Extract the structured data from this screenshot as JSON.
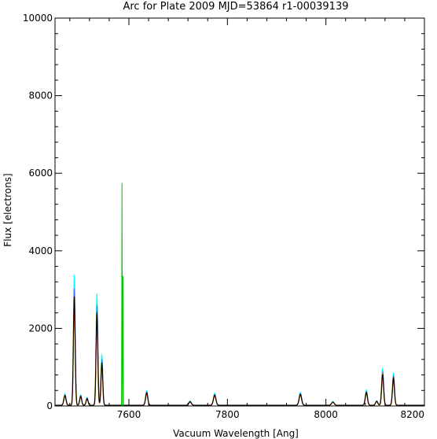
{
  "chart_data": {
    "type": "line",
    "title": "Arc for Plate 2009   MJD=53864   r1-00039139",
    "xlabel": "Vacuum Wavelength [Ang]",
    "ylabel": "Flux [electrons]",
    "xlim": [
      7450,
      8200
    ],
    "ylim": [
      0,
      10000
    ],
    "x_ticks": [
      7600,
      7800,
      8000,
      8200
    ],
    "x_tick_labels": [
      "7600",
      "7800",
      "8000",
      "8200"
    ],
    "y_ticks": [
      0,
      2000,
      4000,
      6000,
      8000,
      10000
    ],
    "y_tick_labels": [
      "0",
      "2000",
      "4000",
      "6000",
      "8000",
      "10000"
    ],
    "grid": false,
    "legend": "none",
    "colors": {
      "black": "#000000",
      "cyan": "#00ffff",
      "blue": "#3f6fff",
      "yellow": "#ffff00",
      "red": "#ff0000",
      "green": "#00c800"
    },
    "baseline": 20,
    "lines": [
      {
        "x": 7470,
        "peak": 250,
        "width": 2.2
      },
      {
        "x": 7489,
        "peak": 2800,
        "width": 1.8
      },
      {
        "x": 7502,
        "peak": 230,
        "width": 2.0
      },
      {
        "x": 7515,
        "peak": 170,
        "width": 2.0
      },
      {
        "x": 7535,
        "peak": 2400,
        "width": 1.8
      },
      {
        "x": 7545,
        "peak": 1100,
        "width": 1.8
      },
      {
        "x": 7636,
        "peak": 320,
        "width": 2.2
      },
      {
        "x": 7724,
        "peak": 90,
        "width": 2.5
      },
      {
        "x": 7774,
        "peak": 260,
        "width": 2.5
      },
      {
        "x": 7948,
        "peak": 280,
        "width": 2.5
      },
      {
        "x": 8014,
        "peak": 80,
        "width": 2.5
      },
      {
        "x": 8082,
        "peak": 330,
        "width": 2.2
      },
      {
        "x": 8103,
        "peak": 100,
        "width": 2.2
      },
      {
        "x": 8115,
        "peak": 800,
        "width": 2.0
      },
      {
        "x": 8137,
        "peak": 700,
        "width": 2.0
      }
    ],
    "fibers": [
      {
        "color": "cyan",
        "scale": 1.2,
        "shift": 0.0
      },
      {
        "color": "blue",
        "scale": 1.08,
        "shift": 0.4
      },
      {
        "color": "yellow",
        "scale": 1.0,
        "shift": -0.4
      },
      {
        "color": "red",
        "scale": 0.92,
        "shift": 0.3
      },
      {
        "color": "black",
        "scale": 1.0,
        "shift": 0.0
      }
    ],
    "spike": {
      "color": "green",
      "x": 7587,
      "values": [
        {
          "x": 7585,
          "y": 0
        },
        {
          "x": 7586,
          "y": 5750
        },
        {
          "x": 7587,
          "y": 0
        },
        {
          "x": 7588,
          "y": 3350
        },
        {
          "x": 7589,
          "y": 0
        }
      ]
    }
  }
}
